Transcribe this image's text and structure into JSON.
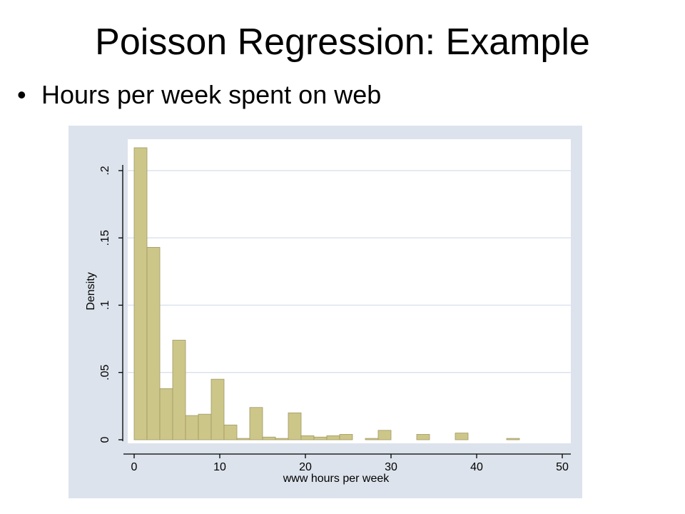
{
  "slide": {
    "title": "Poisson Regression:  Example",
    "bullet_marker": "•",
    "bullet_text": "Hours per week spent on web"
  },
  "colors": {
    "panel_background": "#dce3ec",
    "plot_background": "#ffffff",
    "bar_fill": "#cdc689",
    "bar_stroke": "#a09a64",
    "grid": "#dce3ec",
    "axis": "#000000"
  },
  "chart_data": {
    "type": "bar",
    "title": "",
    "xlabel": "www hours per week",
    "ylabel": "Density",
    "xlim": [
      0,
      50
    ],
    "ylim": [
      0,
      0.2
    ],
    "grid": true,
    "x_ticks": [
      0,
      10,
      20,
      30,
      40,
      50
    ],
    "x_tick_labels": [
      "0",
      "10",
      "20",
      "30",
      "40",
      "50"
    ],
    "y_ticks": [
      0,
      0.05,
      0.1,
      0.15,
      0.2
    ],
    "y_tick_labels": [
      "0",
      ".05",
      ".1",
      ".15",
      ".2"
    ],
    "bin_width": 1.5,
    "bins": [
      {
        "start": 0,
        "value": 0.217
      },
      {
        "start": 1.5,
        "value": 0.143
      },
      {
        "start": 3,
        "value": 0.038
      },
      {
        "start": 4.5,
        "value": 0.074
      },
      {
        "start": 6,
        "value": 0.018
      },
      {
        "start": 7.5,
        "value": 0.019
      },
      {
        "start": 9,
        "value": 0.045
      },
      {
        "start": 10.5,
        "value": 0.011
      },
      {
        "start": 12,
        "value": 0.001
      },
      {
        "start": 13.5,
        "value": 0.024
      },
      {
        "start": 15,
        "value": 0.002
      },
      {
        "start": 16.5,
        "value": 0.001
      },
      {
        "start": 18,
        "value": 0.02
      },
      {
        "start": 19.5,
        "value": 0.003
      },
      {
        "start": 21,
        "value": 0.002
      },
      {
        "start": 22.5,
        "value": 0.003
      },
      {
        "start": 24,
        "value": 0.004
      },
      {
        "start": 25.5,
        "value": 0
      },
      {
        "start": 27,
        "value": 0.001
      },
      {
        "start": 28.5,
        "value": 0.007
      },
      {
        "start": 30,
        "value": 0
      },
      {
        "start": 31.5,
        "value": 0
      },
      {
        "start": 33,
        "value": 0.004
      },
      {
        "start": 34.5,
        "value": 0
      },
      {
        "start": 36,
        "value": 0
      },
      {
        "start": 37.5,
        "value": 0.005
      },
      {
        "start": 39,
        "value": 0
      },
      {
        "start": 40.5,
        "value": 0
      },
      {
        "start": 42,
        "value": 0
      },
      {
        "start": 43.5,
        "value": 0.001
      }
    ]
  }
}
